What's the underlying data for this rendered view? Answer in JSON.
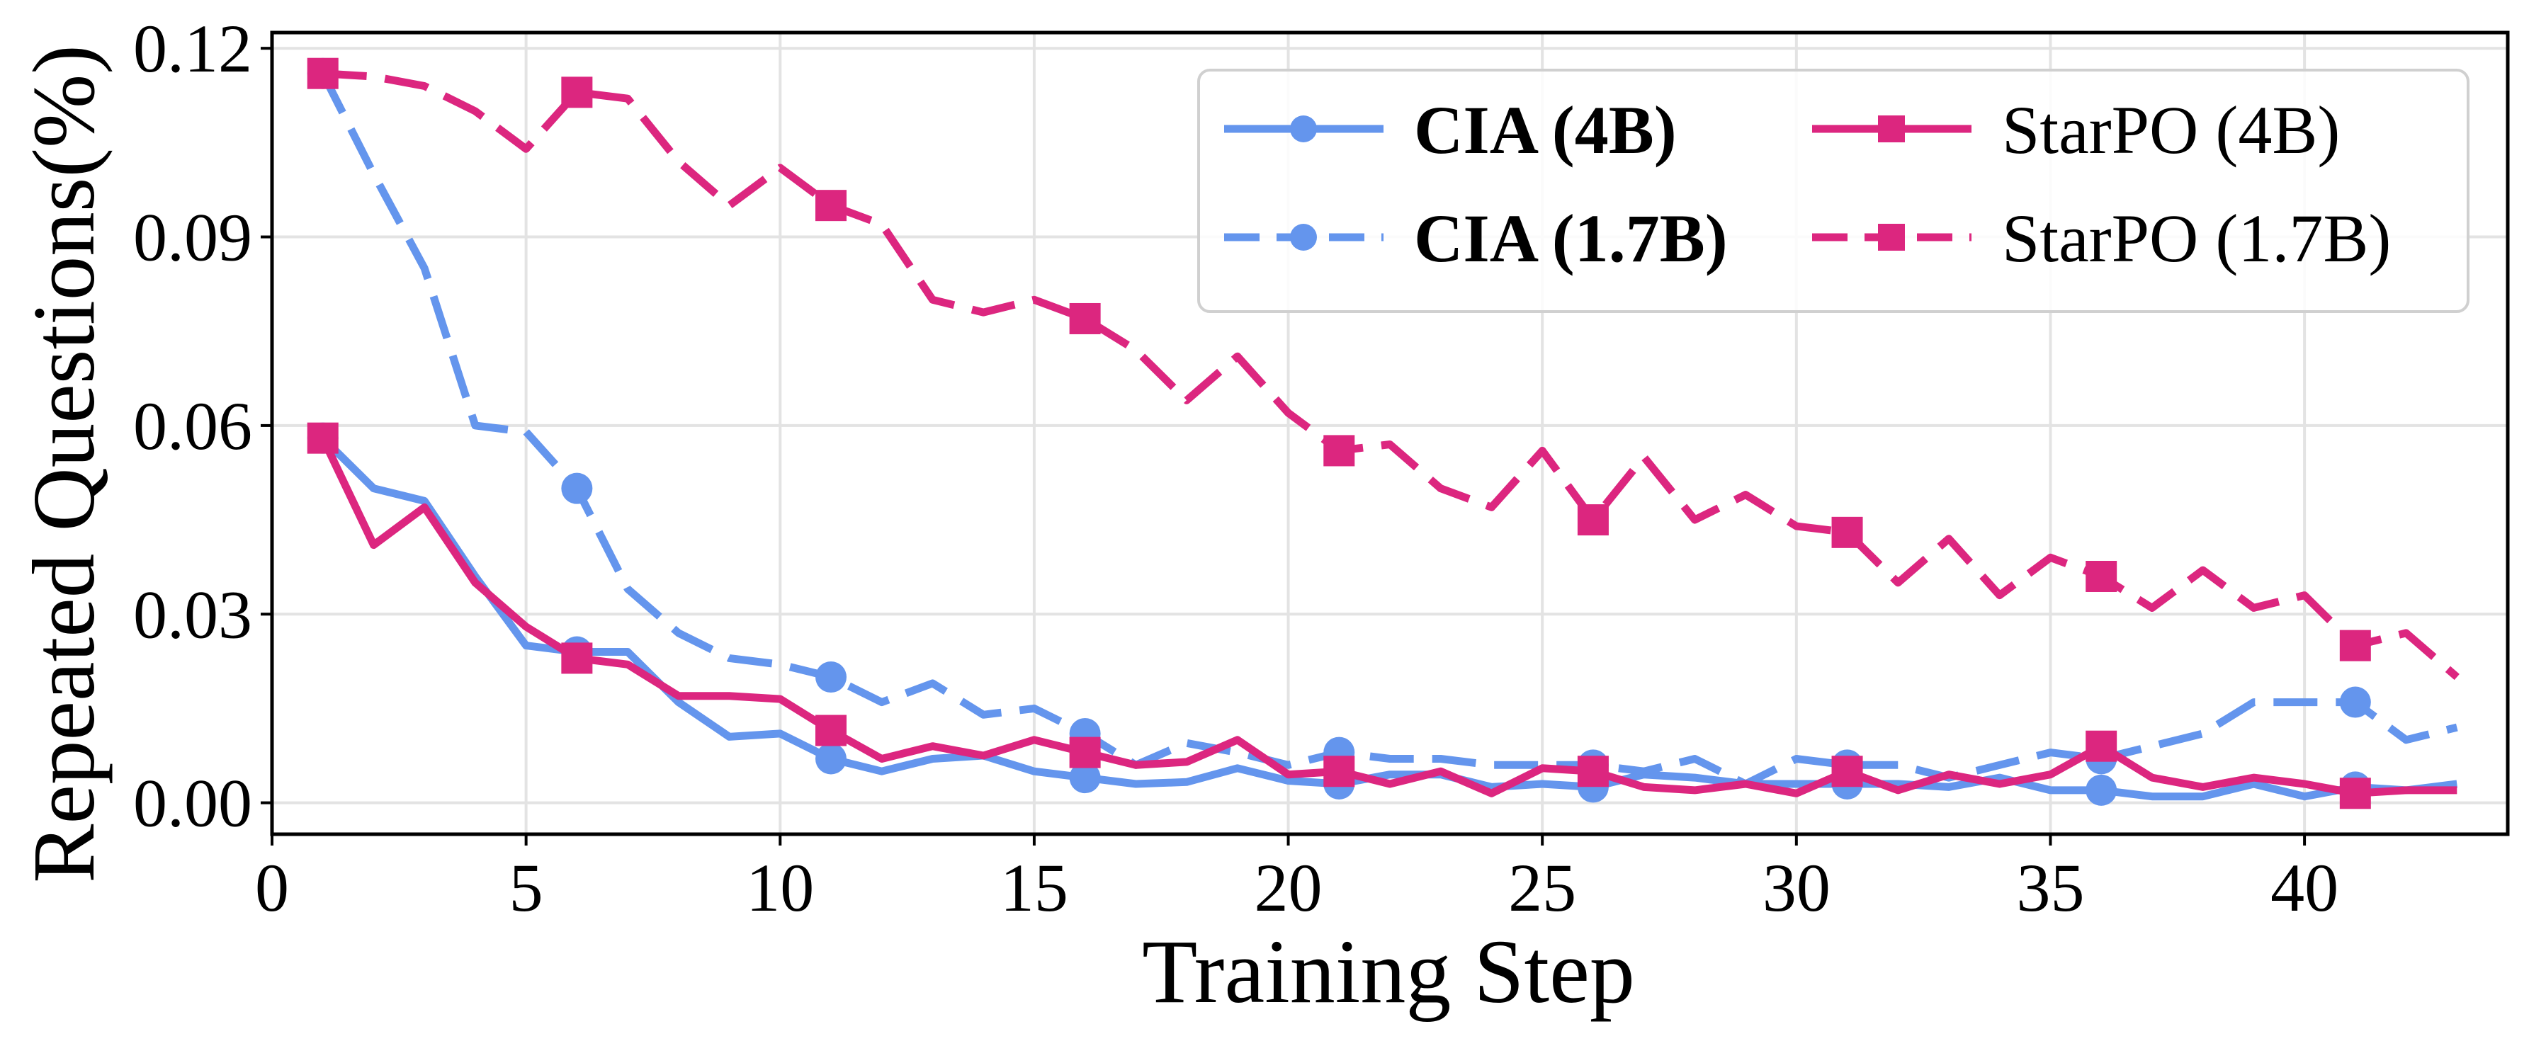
{
  "chart_data": {
    "type": "line",
    "title": "",
    "xlabel": "Training Step",
    "ylabel": "Repeated Questions(%)",
    "xlim": [
      0,
      44
    ],
    "ylim": [
      -0.005,
      0.1225
    ],
    "xticks": [
      0,
      5,
      10,
      15,
      20,
      25,
      30,
      35,
      40
    ],
    "xtick_labels": [
      "0",
      "5",
      "10",
      "15",
      "20",
      "25",
      "30",
      "35",
      "40"
    ],
    "yticks": [
      0,
      0.03,
      0.06,
      0.09,
      0.12
    ],
    "ytick_labels": [
      "0.00",
      "0.03",
      "0.06",
      "0.09",
      "0.12"
    ],
    "grid": true,
    "legend_position": "top-right",
    "x": [
      1,
      2,
      3,
      4,
      5,
      6,
      7,
      8,
      9,
      10,
      11,
      12,
      13,
      14,
      15,
      16,
      17,
      18,
      19,
      20,
      21,
      22,
      23,
      24,
      25,
      26,
      27,
      28,
      29,
      30,
      31,
      32,
      33,
      34,
      35,
      36,
      37,
      38,
      39,
      40,
      41,
      42,
      43
    ],
    "marker_every": 5,
    "series": [
      {
        "name": "CIA (4B)",
        "bold": true,
        "color": "#6495ED",
        "style": "solid",
        "marker": "circle",
        "values": [
          0.058,
          0.05,
          0.048,
          0.036,
          0.025,
          0.024,
          0.024,
          0.016,
          0.0105,
          0.011,
          0.007,
          0.005,
          0.007,
          0.0075,
          0.005,
          0.004,
          0.003,
          0.0033,
          0.0055,
          0.0035,
          0.003,
          0.0045,
          0.0045,
          0.0025,
          0.003,
          0.0025,
          0.0045,
          0.004,
          0.003,
          0.003,
          0.003,
          0.003,
          0.0025,
          0.004,
          0.002,
          0.002,
          0.001,
          0.001,
          0.003,
          0.001,
          0.0025,
          0.002,
          0.003
        ]
      },
      {
        "name": "CIA (1.7B)",
        "bold": true,
        "color": "#6495ED",
        "style": "dashed",
        "marker": "circle",
        "values": [
          0.116,
          0.1,
          0.085,
          0.06,
          0.059,
          0.05,
          0.034,
          0.027,
          0.023,
          0.022,
          0.02,
          0.016,
          0.019,
          0.014,
          0.015,
          0.011,
          0.006,
          0.0095,
          0.008,
          0.006,
          0.008,
          0.007,
          0.007,
          0.006,
          0.006,
          0.006,
          0.005,
          0.007,
          0.003,
          0.007,
          0.006,
          0.006,
          0.004,
          0.006,
          0.008,
          0.007,
          0.009,
          0.011,
          0.016,
          0.016,
          0.016,
          0.01,
          0.012
        ]
      },
      {
        "name": "StarPO (4B)",
        "bold": false,
        "color": "#DC267F",
        "style": "solid",
        "marker": "square",
        "values": [
          0.058,
          0.041,
          0.047,
          0.035,
          0.028,
          0.023,
          0.022,
          0.017,
          0.017,
          0.0165,
          0.0115,
          0.007,
          0.009,
          0.0075,
          0.01,
          0.008,
          0.006,
          0.0065,
          0.01,
          0.0045,
          0.005,
          0.003,
          0.005,
          0.0015,
          0.0055,
          0.005,
          0.0025,
          0.002,
          0.003,
          0.0015,
          0.005,
          0.002,
          0.0045,
          0.003,
          0.0045,
          0.009,
          0.004,
          0.0025,
          0.004,
          0.003,
          0.0015,
          0.002,
          0.002
        ]
      },
      {
        "name": "StarPO (1.7B)",
        "bold": false,
        "color": "#DC267F",
        "style": "dashed",
        "marker": "square",
        "values": [
          0.116,
          0.1155,
          0.114,
          0.11,
          0.104,
          0.113,
          0.112,
          0.102,
          0.095,
          0.101,
          0.095,
          0.092,
          0.08,
          0.078,
          0.08,
          0.077,
          0.072,
          0.064,
          0.071,
          0.062,
          0.056,
          0.057,
          0.05,
          0.047,
          0.056,
          0.045,
          0.055,
          0.045,
          0.049,
          0.044,
          0.043,
          0.035,
          0.042,
          0.033,
          0.039,
          0.036,
          0.031,
          0.037,
          0.031,
          0.033,
          0.025,
          0.027,
          0.02
        ]
      }
    ]
  }
}
